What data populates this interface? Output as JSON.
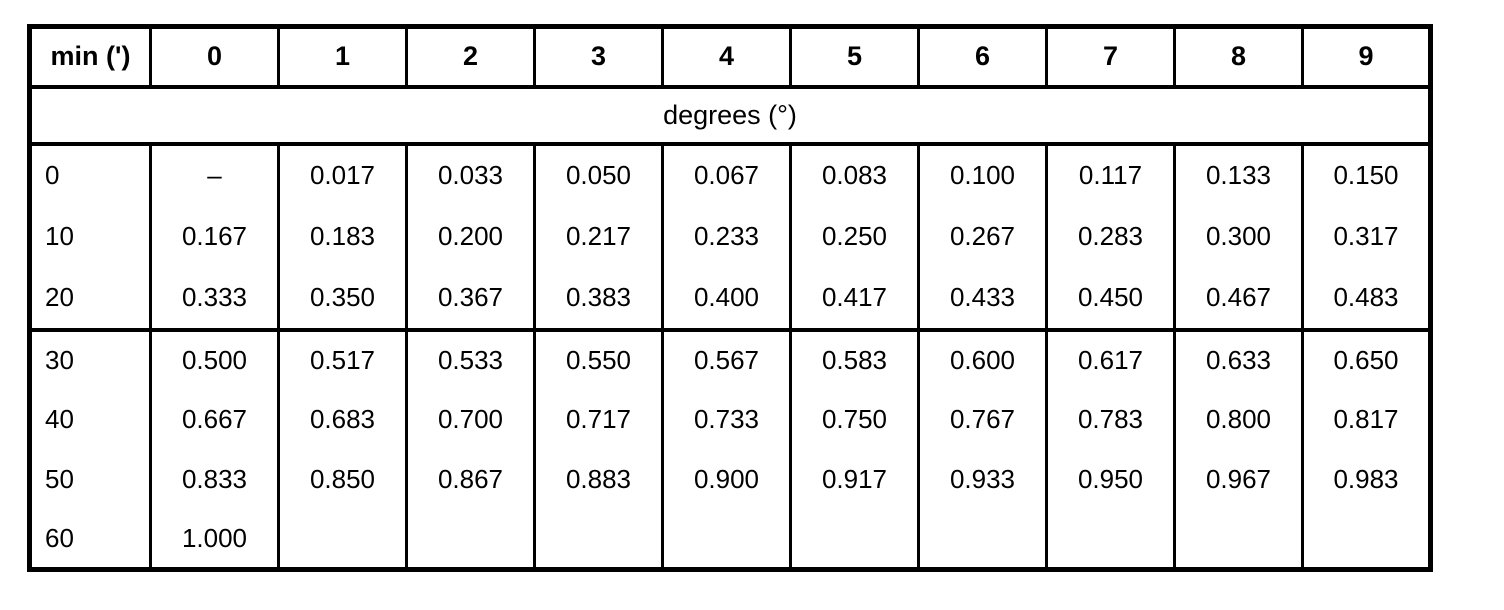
{
  "background_color": "#ffffff",
  "line_color": "#000000",
  "chart_data": {
    "type": "table",
    "corner_header": "min (')",
    "column_headers": [
      "0",
      "1",
      "2",
      "3",
      "4",
      "5",
      "6",
      "7",
      "8",
      "9"
    ],
    "unit_header": "degrees (°)",
    "rows": [
      {
        "label": "0",
        "values": [
          "–",
          "0.017",
          "0.033",
          "0.050",
          "0.067",
          "0.083",
          "0.100",
          "0.117",
          "0.133",
          "0.150"
        ]
      },
      {
        "label": "10",
        "values": [
          "0.167",
          "0.183",
          "0.200",
          "0.217",
          "0.233",
          "0.250",
          "0.267",
          "0.283",
          "0.300",
          "0.317"
        ]
      },
      {
        "label": "20",
        "values": [
          "0.333",
          "0.350",
          "0.367",
          "0.383",
          "0.400",
          "0.417",
          "0.433",
          "0.450",
          "0.467",
          "0.483"
        ]
      },
      {
        "label": "30",
        "values": [
          "0.500",
          "0.517",
          "0.533",
          "0.550",
          "0.567",
          "0.583",
          "0.600",
          "0.617",
          "0.633",
          "0.650"
        ]
      },
      {
        "label": "40",
        "values": [
          "0.667",
          "0.683",
          "0.700",
          "0.717",
          "0.733",
          "0.750",
          "0.767",
          "0.783",
          "0.800",
          "0.817"
        ]
      },
      {
        "label": "50",
        "values": [
          "0.833",
          "0.850",
          "0.867",
          "0.883",
          "0.900",
          "0.917",
          "0.933",
          "0.950",
          "0.967",
          "0.983"
        ]
      },
      {
        "label": "60",
        "values": [
          "1.000",
          "",
          "",
          "",
          "",
          "",
          "",
          "",
          "",
          ""
        ]
      }
    ],
    "row_groups": [
      [
        0,
        1,
        2
      ],
      [
        3,
        4,
        5,
        6
      ]
    ],
    "legend_position": "none",
    "grid": "partial"
  }
}
